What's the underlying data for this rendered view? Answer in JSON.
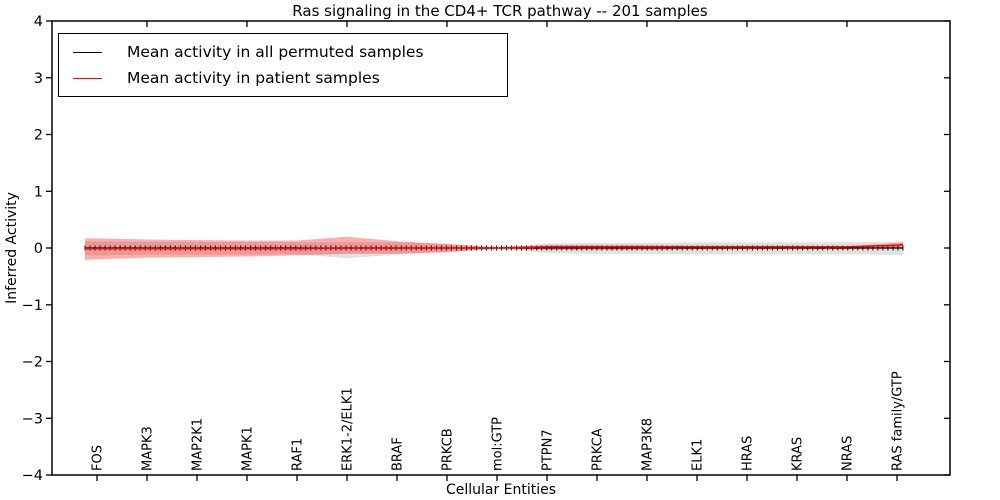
{
  "figure": {
    "title": "Ras signaling in the CD4+ TCR pathway -- 201 samples",
    "xlabel": "Cellular Entities",
    "ylabel": "Inferred Activity"
  },
  "legend": {
    "entries": [
      {
        "label": "Mean activity in all permuted samples",
        "color": "#000000"
      },
      {
        "label": "Mean activity in patient samples",
        "color": "#ff0000"
      }
    ]
  },
  "chart_data": {
    "type": "line",
    "title": "Ras signaling in the CD4+ TCR pathway -- 201 samples",
    "xlabel": "Cellular Entities",
    "ylabel": "Inferred Activity",
    "ylim": [
      -4,
      4
    ],
    "yticks": [
      4,
      3,
      2,
      1,
      0,
      -1,
      -2,
      -3,
      -4
    ],
    "grid": false,
    "legend_position": "upper left",
    "categories": [
      "FOS",
      "MAPK3",
      "MAP2K1",
      "MAPK1",
      "RAF1",
      "ERK1-2/ELK1",
      "BRAF",
      "PRKCB",
      "mol:GTP",
      "PTPN7",
      "PRKCA",
      "MAP3K8",
      "ELK1",
      "HRAS",
      "KRAS",
      "NRAS",
      "RAS family/GTP"
    ],
    "n_points": 164,
    "control_t": [
      0.0,
      0.015,
      0.076,
      0.137,
      0.198,
      0.259,
      0.32,
      0.381,
      0.443,
      0.504,
      0.565,
      0.626,
      0.687,
      0.748,
      0.809,
      0.87,
      0.932,
      0.993,
      1.0
    ],
    "series": [
      {
        "name": "Mean activity in all permuted samples",
        "color": "#000000",
        "marker": "|",
        "band_color": "#aaaaaa",
        "band_opacity": 0.35,
        "mean": [
          0,
          0,
          0,
          0,
          0,
          0,
          0,
          0,
          0,
          0,
          0,
          0,
          0,
          0,
          0,
          0,
          0,
          0,
          0
        ],
        "upper": [
          0.12,
          0.12,
          0.11,
          0.11,
          0.1,
          0.1,
          0.1,
          0.1,
          0.07,
          0.01,
          0.08,
          0.09,
          0.09,
          0.1,
          0.1,
          0.1,
          0.1,
          0.11,
          0.11
        ],
        "lower": [
          -0.13,
          -0.13,
          -0.12,
          -0.12,
          -0.11,
          -0.11,
          -0.18,
          -0.12,
          -0.08,
          -0.01,
          -0.09,
          -0.1,
          -0.1,
          -0.11,
          -0.11,
          -0.11,
          -0.11,
          -0.12,
          -0.12
        ]
      },
      {
        "name": "Mean activity in patient samples",
        "color": "#ff0000",
        "marker": "none",
        "band_color": "#ff0000",
        "band_opacity": 0.32,
        "mean": [
          -0.01,
          -0.01,
          -0.01,
          -0.01,
          -0.01,
          -0.01,
          0.0,
          0.0,
          0.0,
          0.0,
          0.02,
          0.02,
          0.02,
          0.02,
          0.02,
          0.02,
          0.02,
          0.05,
          0.06
        ],
        "upper": [
          0.17,
          0.17,
          0.15,
          0.14,
          0.13,
          0.13,
          0.2,
          0.12,
          0.07,
          0.01,
          0.05,
          0.05,
          0.05,
          0.04,
          0.04,
          0.04,
          0.03,
          0.09,
          0.1
        ],
        "lower": [
          -0.21,
          -0.2,
          -0.17,
          -0.16,
          -0.15,
          -0.13,
          -0.1,
          -0.1,
          -0.07,
          -0.01,
          -0.03,
          -0.03,
          -0.03,
          -0.02,
          -0.02,
          -0.02,
          -0.02,
          0.0,
          0.02
        ]
      }
    ]
  }
}
